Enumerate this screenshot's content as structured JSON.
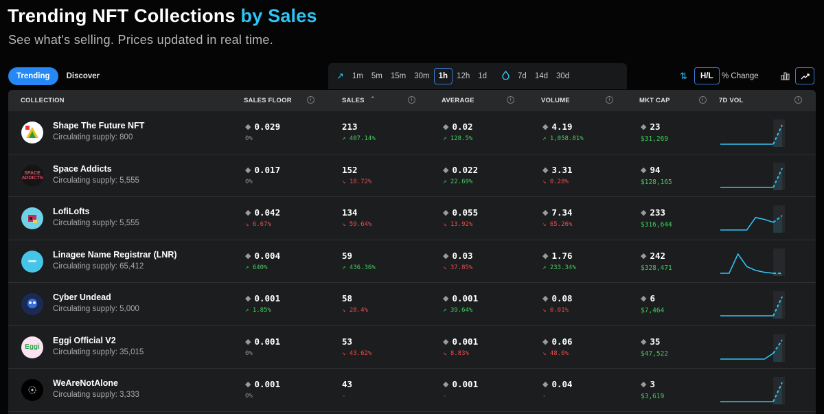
{
  "header": {
    "title_main": "Trending NFT Collections",
    "title_accent": "by Sales",
    "subtitle": "See what's selling. Prices updated in real time."
  },
  "nav": {
    "trending": "Trending",
    "discover": "Discover"
  },
  "time_filters": {
    "short": [
      "1m",
      "5m",
      "15m",
      "30m",
      "1h",
      "12h",
      "1d"
    ],
    "long": [
      "7d",
      "14d",
      "30d"
    ],
    "selected": "1h"
  },
  "view_controls": {
    "hl": "H/L",
    "pct_change": "% Change"
  },
  "columns": {
    "collection": "COLLECTION",
    "sales_floor": "SALES FLOOR",
    "sales": "SALES",
    "average": "AVERAGE",
    "volume": "VOLUME",
    "mkt_cap": "MKT CAP",
    "vol7d": "7D VOL"
  },
  "colors": {
    "accent": "#2ec5f4",
    "active_tab": "#2588f5",
    "up": "#3fd05c",
    "down": "#ee4a4a"
  },
  "rows": [
    {
      "name": "Shape The Future NFT",
      "supply": "Circulating supply: 800",
      "floor": "0.029",
      "floor_chg": "0%",
      "floor_dir": "neutral",
      "sales": "213",
      "sales_chg": "407.14%",
      "sales_dir": "up",
      "average": "0.02",
      "average_chg": "128.5%",
      "average_dir": "up",
      "volume": "4.19",
      "volume_chg": "1,058.81%",
      "volume_dir": "up",
      "mcap": "23",
      "mcap_usd": "$31,269",
      "spark": [
        0,
        0,
        0,
        0,
        0,
        0,
        0,
        1
      ]
    },
    {
      "name": "Space Addicts",
      "supply": "Circulating supply: 5,555",
      "floor": "0.017",
      "floor_chg": "0%",
      "floor_dir": "neutral",
      "sales": "152",
      "sales_chg": "18.72%",
      "sales_dir": "down",
      "average": "0.022",
      "average_chg": "22.69%",
      "average_dir": "up",
      "volume": "3.31",
      "volume_chg": "0.28%",
      "volume_dir": "down",
      "mcap": "94",
      "mcap_usd": "$128,165",
      "spark": [
        0,
        0,
        0,
        0,
        0,
        0,
        0,
        1
      ]
    },
    {
      "name": "LofiLofts",
      "supply": "Circulating supply: 5,555",
      "floor": "0.042",
      "floor_chg": "6.67%",
      "floor_dir": "down",
      "sales": "134",
      "sales_chg": "59.64%",
      "sales_dir": "down",
      "average": "0.055",
      "average_chg": "13.92%",
      "average_dir": "down",
      "volume": "7.34",
      "volume_chg": "65.26%",
      "volume_dir": "down",
      "mcap": "233",
      "mcap_usd": "$316,644",
      "spark": [
        0,
        0,
        0,
        0,
        0.65,
        0.55,
        0.4,
        0.75
      ]
    },
    {
      "name": "Linagee Name Registrar (LNR)",
      "supply": "Circulating supply: 65,412",
      "floor": "0.004",
      "floor_chg": "640%",
      "floor_dir": "up",
      "sales": "59",
      "sales_chg": "436.36%",
      "sales_dir": "up",
      "average": "0.03",
      "average_chg": "37.85%",
      "average_dir": "down",
      "volume": "1.76",
      "volume_chg": "233.34%",
      "volume_dir": "up",
      "mcap": "242",
      "mcap_usd": "$328,471",
      "spark": [
        0,
        0,
        1,
        0.35,
        0.15,
        0.05,
        0,
        0
      ]
    },
    {
      "name": "Cyber Undead",
      "supply": "Circulating supply: 5,000",
      "floor": "0.001",
      "floor_chg": "1.85%",
      "floor_dir": "up",
      "sales": "58",
      "sales_chg": "28.4%",
      "sales_dir": "down",
      "average": "0.001",
      "average_chg": "39.64%",
      "average_dir": "up",
      "volume": "0.08",
      "volume_chg": "0.01%",
      "volume_dir": "down",
      "mcap": "6",
      "mcap_usd": "$7,464",
      "spark": [
        0,
        0,
        0,
        0,
        0,
        0,
        0,
        1
      ]
    },
    {
      "name": "Eggi Official V2",
      "supply": "Circulating supply: 35,015",
      "floor": "0.001",
      "floor_chg": "0%",
      "floor_dir": "neutral",
      "sales": "53",
      "sales_chg": "43.62%",
      "sales_dir": "down",
      "average": "0.001",
      "average_chg": "8.83%",
      "average_dir": "down",
      "volume": "0.06",
      "volume_chg": "48.6%",
      "volume_dir": "down",
      "mcap": "35",
      "mcap_usd": "$47,522",
      "spark": [
        0,
        0,
        0,
        0,
        0,
        0,
        0.3,
        1
      ]
    },
    {
      "name": "WeAreNotAlone",
      "supply": "Circulating supply: 3,333",
      "floor": "0.001",
      "floor_chg": "0%",
      "floor_dir": "neutral",
      "sales": "43",
      "sales_chg": "-",
      "sales_dir": "neutral",
      "average": "0.001",
      "average_chg": "-",
      "average_dir": "neutral",
      "volume": "0.04",
      "volume_chg": "-",
      "volume_dir": "neutral",
      "mcap": "3",
      "mcap_usd": "$3,619",
      "spark": [
        0,
        0,
        0,
        0,
        0,
        0,
        0,
        1
      ]
    }
  ]
}
